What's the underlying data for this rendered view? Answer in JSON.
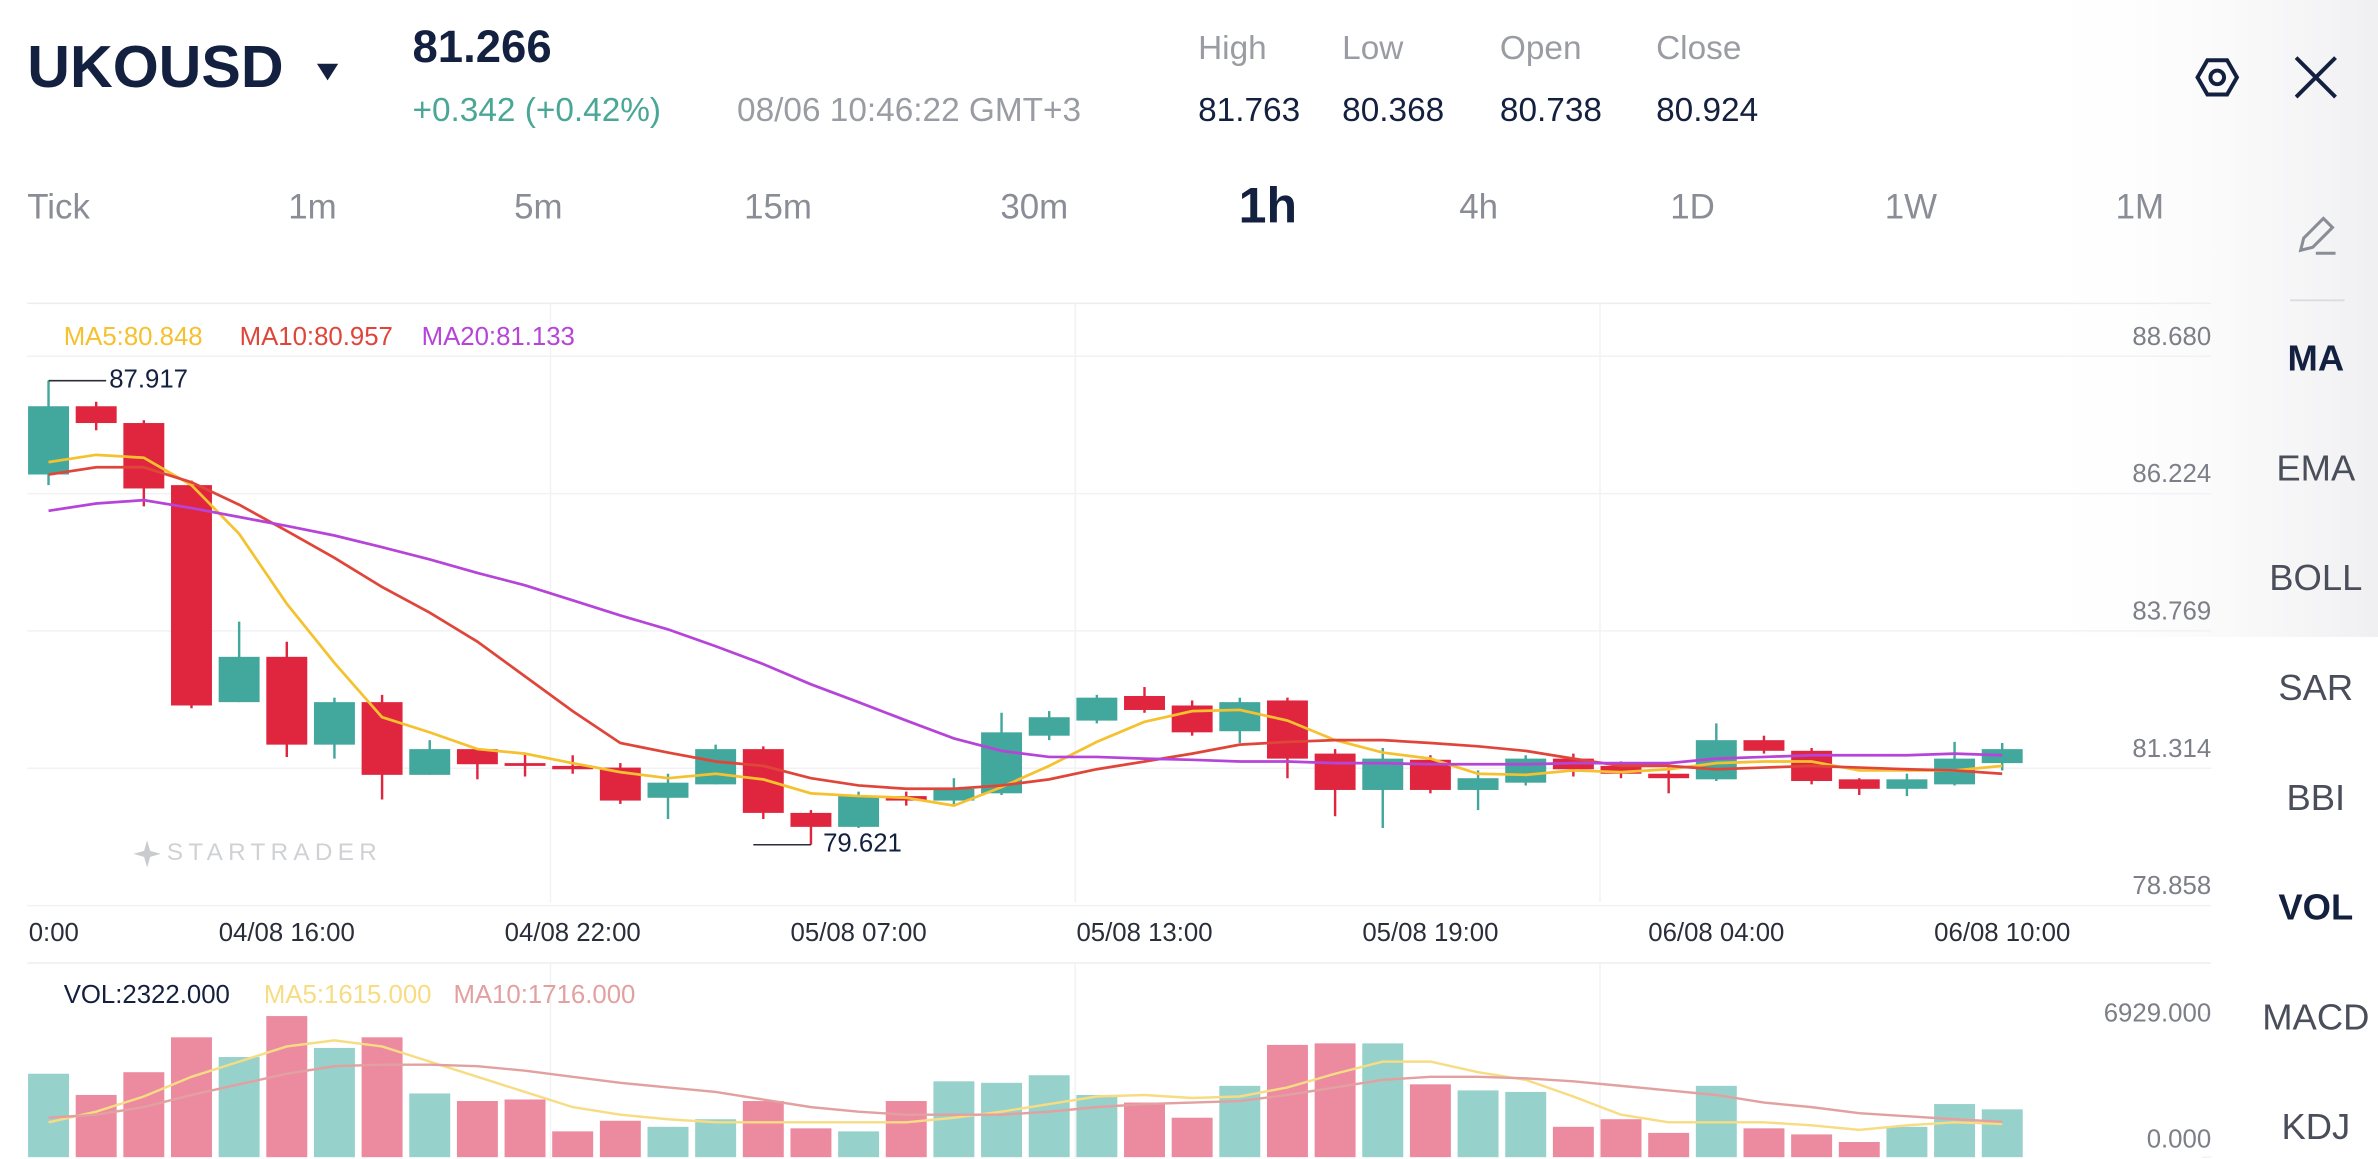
{
  "header": {
    "symbol": "UKOUSD",
    "price": 81.266,
    "change": "+0.342 (+0.42%)",
    "time": "08/06 10:46:22 GMT+3",
    "stats": [
      {
        "label": "High",
        "value": 81.763
      },
      {
        "label": "Low",
        "value": 80.368
      },
      {
        "label": "Open",
        "value": 80.738
      },
      {
        "label": "Close",
        "value": 80.924
      }
    ]
  },
  "timeframes": [
    {
      "label": "Tick",
      "active": false
    },
    {
      "label": "1m",
      "active": false
    },
    {
      "label": "5m",
      "active": false
    },
    {
      "label": "15m",
      "active": false
    },
    {
      "label": "30m",
      "active": false
    },
    {
      "label": "1h",
      "active": true
    },
    {
      "label": "4h",
      "active": false
    },
    {
      "label": "1D",
      "active": false
    },
    {
      "label": "1W",
      "active": false
    },
    {
      "label": "1M",
      "active": false
    }
  ],
  "indicators": [
    {
      "label": "MA",
      "active": true
    },
    {
      "label": "EMA",
      "active": false
    },
    {
      "label": "BOLL",
      "active": false
    },
    {
      "label": "SAR",
      "active": false
    },
    {
      "label": "BBI",
      "active": false
    },
    {
      "label": "VOL",
      "active": true
    },
    {
      "label": "MACD",
      "active": false
    },
    {
      "label": "KDJ",
      "active": false
    }
  ],
  "watermark": "STARTRADER",
  "chart_data": [
    {
      "type": "candlestick",
      "up_color": "#42a79d",
      "down_color": "#e0263f",
      "categories": [
        "0:00",
        null,
        null,
        null,
        null,
        "04/08 16:00",
        null,
        null,
        null,
        null,
        null,
        "04/08 22:00",
        null,
        null,
        null,
        null,
        null,
        "05/08 07:00",
        null,
        null,
        null,
        null,
        null,
        "05/08 13:00",
        null,
        null,
        null,
        null,
        null,
        "05/08 19:00",
        null,
        null,
        null,
        null,
        null,
        "06/08 04:00",
        null,
        null,
        null,
        null,
        null,
        "06/08 10:00"
      ],
      "open": [
        86.24,
        87.46,
        87.16,
        86.05,
        82.17,
        82.98,
        81.41,
        82.17,
        80.87,
        81.33,
        81.08,
        81.03,
        81.0,
        80.46,
        80.7,
        81.33,
        80.19,
        79.94,
        80.49,
        80.41,
        80.54,
        81.57,
        81.84,
        82.28,
        82.11,
        81.65,
        82.2,
        81.25,
        80.6,
        81.14,
        80.6,
        80.73,
        81.16,
        81.03,
        80.89,
        80.79,
        81.49,
        81.3,
        80.79,
        80.62,
        80.7,
        81.08
      ],
      "high": [
        87.917,
        87.54,
        87.21,
        86.13,
        83.61,
        83.25,
        82.25,
        82.3,
        81.49,
        81.33,
        81.27,
        81.22,
        81.08,
        80.89,
        81.41,
        81.38,
        80.24,
        80.57,
        80.57,
        80.81,
        81.98,
        82.01,
        82.3,
        82.44,
        82.2,
        82.25,
        82.25,
        81.33,
        81.35,
        81.22,
        80.95,
        81.22,
        81.25,
        81.11,
        81.0,
        81.79,
        81.57,
        81.35,
        80.81,
        80.89,
        81.46,
        81.44
      ],
      "low": [
        86.05,
        87.03,
        85.67,
        82.06,
        82.17,
        81.19,
        81.16,
        80.43,
        80.87,
        80.79,
        80.84,
        80.89,
        80.35,
        80.08,
        80.7,
        80.08,
        79.621,
        79.92,
        80.32,
        80.32,
        80.51,
        81.49,
        81.79,
        81.98,
        81.57,
        81.44,
        80.81,
        80.13,
        79.92,
        80.54,
        80.24,
        80.68,
        80.84,
        80.81,
        80.54,
        80.76,
        81.25,
        80.7,
        80.51,
        80.49,
        80.68,
        80.95
      ],
      "close": [
        87.46,
        87.16,
        85.99,
        82.11,
        82.98,
        81.41,
        82.17,
        80.87,
        81.33,
        81.06,
        81.03,
        80.97,
        80.41,
        80.73,
        81.33,
        80.19,
        79.94,
        80.49,
        80.41,
        80.62,
        81.63,
        81.9,
        82.25,
        82.03,
        81.63,
        82.17,
        81.16,
        80.6,
        81.16,
        80.6,
        80.81,
        81.16,
        80.97,
        80.89,
        80.81,
        81.49,
        81.3,
        80.76,
        80.62,
        80.79,
        81.16,
        81.33
      ],
      "series": [
        {
          "name": "MA5:80.848",
          "color": "#f5c12e",
          "values": [
            86.46,
            86.59,
            86.54,
            86.05,
            85.18,
            83.93,
            82.87,
            81.9,
            81.63,
            81.33,
            81.25,
            81.08,
            80.92,
            80.81,
            80.89,
            80.79,
            80.54,
            80.49,
            80.46,
            80.32,
            80.65,
            81.03,
            81.46,
            81.82,
            82.01,
            82.03,
            81.84,
            81.49,
            81.27,
            81.16,
            80.89,
            80.87,
            80.95,
            80.92,
            80.97,
            81.08,
            81.11,
            81.11,
            80.95,
            80.95,
            80.95,
            81.03
          ]
        },
        {
          "name": "MA10:80.957",
          "color": "#e0453a",
          "values": [
            86.24,
            86.37,
            86.37,
            86.1,
            85.7,
            85.23,
            84.75,
            84.23,
            83.77,
            83.25,
            82.63,
            82.01,
            81.44,
            81.27,
            81.11,
            81.03,
            80.81,
            80.68,
            80.62,
            80.62,
            80.68,
            80.79,
            80.97,
            81.11,
            81.25,
            81.41,
            81.46,
            81.49,
            81.49,
            81.44,
            81.38,
            81.3,
            81.16,
            81.03,
            81.03,
            80.97,
            81.0,
            81.03,
            81.0,
            80.97,
            80.95,
            80.89
          ]
        },
        {
          "name": "MA20:81.133",
          "color": "#b644d8",
          "values": [
            85.59,
            85.72,
            85.78,
            85.64,
            85.48,
            85.32,
            85.15,
            84.94,
            84.72,
            84.48,
            84.26,
            83.99,
            83.72,
            83.47,
            83.17,
            82.85,
            82.49,
            82.17,
            81.84,
            81.52,
            81.3,
            81.19,
            81.19,
            81.16,
            81.14,
            81.11,
            81.11,
            81.08,
            81.08,
            81.06,
            81.06,
            81.06,
            81.08,
            81.08,
            81.08,
            81.16,
            81.19,
            81.22,
            81.22,
            81.22,
            81.25,
            81.22
          ]
        }
      ],
      "ylim": [
        78.59,
        89.3
      ],
      "yticks": [
        {
          "value": 88.68,
          "label": "88.680"
        },
        {
          "value": 86.224,
          "label": "86.224"
        },
        {
          "value": 83.769,
          "label": "83.769"
        },
        {
          "value": 81.314,
          "label": "81.314"
        },
        {
          "value": 78.858,
          "label": "78.858"
        }
      ],
      "grid": true
    },
    {
      "type": "bar",
      "title": "VOL:2322.000",
      "up_color": "#97d1cb",
      "down_color": "#ec8aa0",
      "values": [
        4054,
        3022,
        4127,
        5822,
        4864,
        6854,
        5306,
        5822,
        3095,
        2727,
        2801,
        1253,
        1769,
        1474,
        1843,
        2727,
        1400,
        1253,
        2727,
        3685,
        3611,
        3980,
        3022,
        2653,
        1916,
        3464,
        5454,
        5528,
        5528,
        3538,
        3243,
        3169,
        1474,
        1843,
        1179,
        3464,
        1400,
        1106,
        737,
        1474,
        2580,
        2322
      ],
      "series": [
        {
          "name": "MA5:1615.000",
          "color": "#f7dc84",
          "values": [
            1695,
            2211,
            2948,
            3906,
            4643,
            5380,
            5675,
            5380,
            4643,
            3906,
            3169,
            2432,
            2064,
            1843,
            1695,
            1695,
            1695,
            1695,
            1695,
            1916,
            2211,
            2580,
            2948,
            3022,
            2874,
            2948,
            3390,
            4054,
            4643,
            4643,
            4127,
            3759,
            2948,
            2064,
            1695,
            1695,
            1695,
            1548,
            1327,
            1548,
            1695,
            1615
          ]
        },
        {
          "name": "MA10:1716.000",
          "color": "#e3a0a0",
          "values": [
            1916,
            2064,
            2432,
            3022,
            3538,
            4054,
            4422,
            4496,
            4496,
            4422,
            4201,
            3906,
            3611,
            3390,
            3169,
            2801,
            2432,
            2211,
            2064,
            2064,
            2064,
            2211,
            2432,
            2580,
            2653,
            2727,
            3022,
            3390,
            3759,
            3906,
            3906,
            3832,
            3685,
            3464,
            3243,
            3022,
            2653,
            2432,
            2137,
            1990,
            1843,
            1716
          ]
        }
      ],
      "ylim": [
        0,
        9430
      ],
      "yticks": [
        {
          "value": 6929,
          "label": "6929.000"
        },
        {
          "value": 0,
          "label": "0.000"
        }
      ]
    }
  ]
}
